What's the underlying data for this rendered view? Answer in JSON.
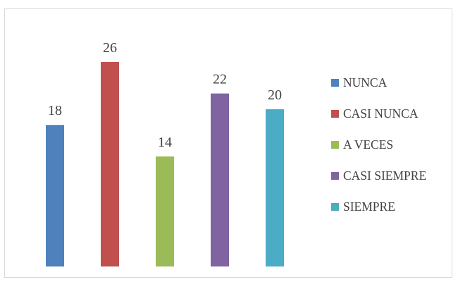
{
  "chart_data": {
    "type": "bar",
    "title": "",
    "xlabel": "",
    "ylabel": "",
    "categories": [
      "NUNCA",
      "CASI NUNCA",
      "A VECES",
      "CASI SIEMPRE",
      "SIEMPRE"
    ],
    "values": [
      18,
      26,
      14,
      22,
      20
    ],
    "colors": [
      "#4f81bd",
      "#c0504d",
      "#9bbb59",
      "#8064a2",
      "#4bacc6"
    ],
    "ylim": [
      0,
      26
    ],
    "grid": false,
    "legend_position": "right",
    "data_labels": true
  }
}
